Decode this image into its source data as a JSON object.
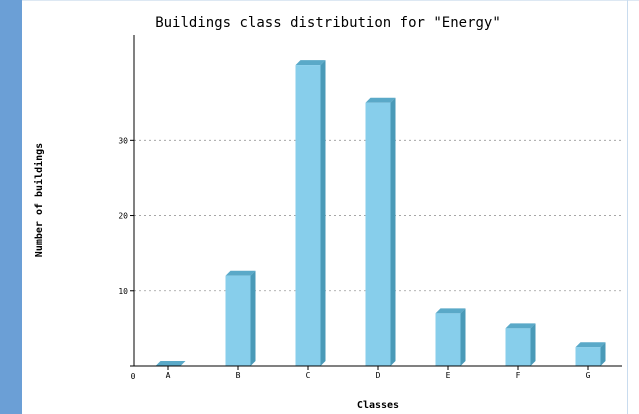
{
  "chart_data": {
    "type": "bar",
    "title": "Buildings class distribution for \"Energy\"",
    "xlabel": "Classes",
    "ylabel": "Number of buildings",
    "categories": [
      "A",
      "B",
      "C",
      "D",
      "E",
      "F",
      "G"
    ],
    "values": [
      0,
      12,
      40,
      35,
      7,
      5,
      2.5
    ],
    "yticks": [
      0,
      10,
      20,
      30
    ],
    "ylim": [
      0,
      44
    ],
    "grid": true,
    "legend": "none",
    "bar_color": "#87ceeb",
    "bar_side_color": "#4a9ab8",
    "bar_top_color": "#5aa9c8"
  }
}
